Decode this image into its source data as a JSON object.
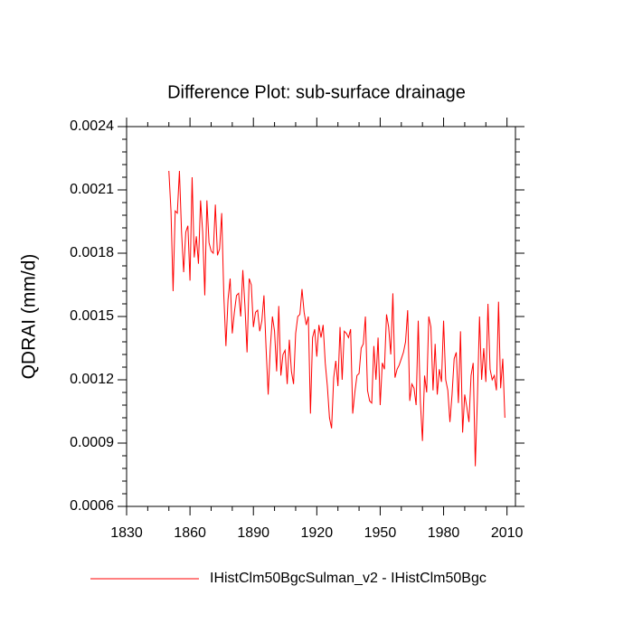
{
  "chart_data": {
    "type": "line",
    "title": "Difference Plot: sub-surface drainage",
    "y_label": "QDRAI  (mm/d)",
    "x": [
      1850,
      1851,
      1852,
      1853,
      1854,
      1855,
      1856,
      1857,
      1858,
      1859,
      1860,
      1861,
      1862,
      1863,
      1864,
      1865,
      1866,
      1867,
      1868,
      1869,
      1870,
      1871,
      1872,
      1873,
      1874,
      1875,
      1876,
      1877,
      1878,
      1879,
      1880,
      1881,
      1882,
      1883,
      1884,
      1885,
      1886,
      1887,
      1888,
      1889,
      1890,
      1891,
      1892,
      1893,
      1894,
      1895,
      1896,
      1897,
      1898,
      1899,
      1900,
      1901,
      1902,
      1903,
      1904,
      1905,
      1906,
      1907,
      1908,
      1909,
      1910,
      1911,
      1912,
      1913,
      1914,
      1915,
      1916,
      1917,
      1918,
      1919,
      1920,
      1921,
      1922,
      1923,
      1924,
      1925,
      1926,
      1927,
      1928,
      1929,
      1930,
      1931,
      1932,
      1933,
      1934,
      1935,
      1936,
      1937,
      1938,
      1939,
      1940,
      1941,
      1942,
      1943,
      1944,
      1945,
      1946,
      1947,
      1948,
      1949,
      1950,
      1951,
      1952,
      1953,
      1954,
      1955,
      1956,
      1957,
      1958,
      1959,
      1960,
      1961,
      1962,
      1963,
      1964,
      1965,
      1966,
      1967,
      1968,
      1969,
      1970,
      1971,
      1972,
      1973,
      1974,
      1975,
      1976,
      1977,
      1978,
      1979,
      1980,
      1981,
      1982,
      1983,
      1984,
      1985,
      1986,
      1987,
      1988,
      1989,
      1990,
      1991,
      1992,
      1993,
      1994,
      1995,
      1996,
      1997,
      1998,
      1999,
      2000,
      2001,
      2002,
      2003,
      2004,
      2005,
      2006,
      2007,
      2008,
      2009
    ],
    "series": [
      {
        "name": "IHistClm50BgcSulman_v2 - IHistClm50Bgc",
        "color": "#ff0000",
        "values": [
          0.00219,
          0.002,
          0.00162,
          0.002,
          0.00199,
          0.00219,
          0.0019,
          0.00171,
          0.0019,
          0.00193,
          0.00167,
          0.00216,
          0.00178,
          0.00188,
          0.00175,
          0.00205,
          0.0019,
          0.0016,
          0.00205,
          0.00185,
          0.00181,
          0.0018,
          0.00203,
          0.00179,
          0.00182,
          0.00199,
          0.0016,
          0.00136,
          0.00158,
          0.00168,
          0.00142,
          0.00152,
          0.0016,
          0.00161,
          0.0015,
          0.00172,
          0.00155,
          0.00133,
          0.00168,
          0.00165,
          0.00145,
          0.00152,
          0.00153,
          0.00143,
          0.00148,
          0.0016,
          0.00135,
          0.00113,
          0.00135,
          0.0015,
          0.00143,
          0.00124,
          0.00155,
          0.00122,
          0.00132,
          0.00134,
          0.00118,
          0.00139,
          0.00124,
          0.00118,
          0.00142,
          0.0015,
          0.00151,
          0.00163,
          0.00152,
          0.00146,
          0.0015,
          0.00104,
          0.0014,
          0.00144,
          0.00131,
          0.00146,
          0.0014,
          0.00146,
          0.00128,
          0.00117,
          0.00102,
          0.00097,
          0.00121,
          0.00129,
          0.00117,
          0.00145,
          0.0012,
          0.00143,
          0.00142,
          0.0014,
          0.00144,
          0.00104,
          0.00114,
          0.00122,
          0.00123,
          0.00135,
          0.00137,
          0.0015,
          0.00115,
          0.0011,
          0.00109,
          0.00136,
          0.0012,
          0.0014,
          0.00108,
          0.00128,
          0.00125,
          0.00151,
          0.00145,
          0.00132,
          0.00161,
          0.00121,
          0.00125,
          0.00127,
          0.0013,
          0.00133,
          0.00138,
          0.00153,
          0.0011,
          0.00118,
          0.00116,
          0.00108,
          0.00148,
          0.0011,
          0.00091,
          0.00122,
          0.00114,
          0.0015,
          0.00145,
          0.00115,
          0.00137,
          0.00113,
          0.00125,
          0.00119,
          0.00148,
          0.0012,
          0.00115,
          0.001,
          0.00113,
          0.0013,
          0.00133,
          0.00109,
          0.00143,
          0.00095,
          0.00113,
          0.00107,
          0.001,
          0.00122,
          0.00128,
          0.00079,
          0.00111,
          0.0015,
          0.0012,
          0.00135,
          0.00119,
          0.00156,
          0.00125,
          0.0012,
          0.00122,
          0.00115,
          0.00157,
          0.00116,
          0.0013,
          0.00102
        ]
      }
    ],
    "xlim": [
      1830,
      2014
    ],
    "xticks": [
      1830,
      1860,
      1890,
      1920,
      1950,
      1980,
      2010
    ],
    "ylim": [
      0.0006,
      0.0024
    ],
    "yticks": [
      0.0006,
      0.0009,
      0.0012,
      0.0015,
      0.0018,
      0.0021,
      0.0024
    ],
    "legend": "bottom"
  }
}
